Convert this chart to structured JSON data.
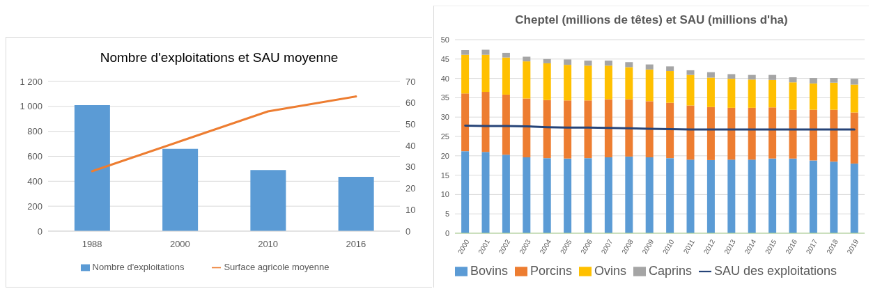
{
  "chart_data": [
    {
      "type": "bar",
      "title": "Nombre d'exploitations et SAU moyenne",
      "categories": [
        "1988",
        "2000",
        "2010",
        "2016"
      ],
      "series": [
        {
          "name": "Nombre d'exploitations",
          "color": "#5b9bd5",
          "values": [
            1010,
            660,
            490,
            435
          ]
        },
        {
          "name": "Surface agricole moyenne",
          "type": "line",
          "axis": "y2",
          "color": "#ed7d31",
          "values": [
            28,
            42,
            56,
            63
          ]
        }
      ],
      "ylim": [
        0,
        1200
      ],
      "yticks": [
        0,
        200,
        400,
        600,
        800,
        {
          "value": 1000,
          "label": "1 000"
        },
        {
          "value": 1200,
          "label": "1 200"
        }
      ],
      "y2lim": [
        0,
        70
      ],
      "y2ticks": [
        0,
        10,
        20,
        30,
        40,
        50,
        60,
        70
      ],
      "grid": "y",
      "legend": "bottom",
      "marker": "none"
    },
    {
      "type": "bar",
      "stacked": true,
      "title": "Cheptel (millions de têtes) et SAU (millions d'ha)",
      "categories": [
        "2000",
        "2001",
        "2002",
        "2003",
        "2004",
        "2005",
        "2006",
        "2007",
        "2008",
        "2009",
        "2010",
        "2011",
        "2012",
        "2013",
        "2014",
        "2015",
        "2016",
        "2017",
        "2018",
        "2019"
      ],
      "series": [
        {
          "name": "Bovins",
          "color": "#5b9bd5",
          "values": [
            21.2,
            21.0,
            20.3,
            19.6,
            19.4,
            19.3,
            19.4,
            19.6,
            19.8,
            19.6,
            19.4,
            19.0,
            18.9,
            19.0,
            19.0,
            19.3,
            19.3,
            18.8,
            18.5,
            18.0
          ]
        },
        {
          "name": "Porcins",
          "color": "#ed7d31",
          "values": [
            14.9,
            15.5,
            15.5,
            15.2,
            15.0,
            15.0,
            14.9,
            15.0,
            14.8,
            14.5,
            14.3,
            14.0,
            13.7,
            13.4,
            13.4,
            13.2,
            12.6,
            13.1,
            13.4,
            13.2
          ]
        },
        {
          "name": "Ovins",
          "color": "#ffc000",
          "values": [
            10.0,
            9.6,
            9.6,
            9.6,
            9.5,
            9.2,
            9.0,
            8.7,
            8.3,
            8.2,
            8.2,
            7.9,
            7.6,
            7.5,
            7.3,
            7.1,
            7.1,
            6.8,
            7.0,
            7.2
          ]
        },
        {
          "name": "Caprins",
          "color": "#a5a5a5",
          "values": [
            1.2,
            1.3,
            1.2,
            1.2,
            1.1,
            1.4,
            1.3,
            1.3,
            1.3,
            1.3,
            1.2,
            1.2,
            1.4,
            1.2,
            1.2,
            1.3,
            1.3,
            1.4,
            1.2,
            1.5
          ]
        },
        {
          "name": "SAU des exploitations",
          "type": "line",
          "color": "#264478",
          "values": [
            27.8,
            27.7,
            27.7,
            27.6,
            27.4,
            27.3,
            27.3,
            27.2,
            27.1,
            27.0,
            26.9,
            26.8,
            26.8,
            26.8,
            26.8,
            26.8,
            26.8,
            26.8,
            26.8,
            26.8
          ]
        }
      ],
      "ylim": [
        0,
        50
      ],
      "yticks": [
        0,
        5,
        10,
        15,
        20,
        25,
        30,
        35,
        40,
        45,
        50
      ],
      "grid": "y",
      "legend": "bottom",
      "marker": "none"
    }
  ]
}
